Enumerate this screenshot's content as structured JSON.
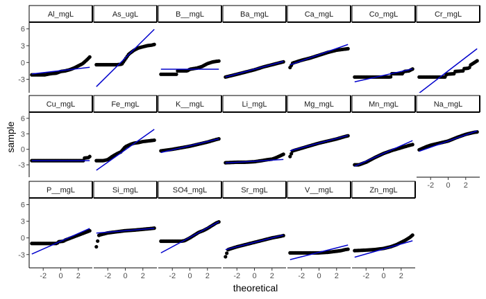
{
  "chart_data": {
    "type": "scatter",
    "title": "",
    "xlabel": "theoretical",
    "ylabel": "sample",
    "x_ticks": [
      -2,
      0,
      2
    ],
    "y_ticks": [
      -3,
      0,
      3,
      6
    ],
    "x_tick_labels": [
      "-2",
      "0",
      "2"
    ],
    "y_tick_labels": [
      "-3",
      "0",
      "3",
      "6"
    ],
    "xlim": [
      -3.6,
      3.6
    ],
    "ylim": [
      -5.4,
      7.2
    ],
    "grid": false,
    "colors": {
      "points": "#000000",
      "reference_line": "#0000cc",
      "strip_fill": "#ffffff",
      "strip_border": "#000000"
    },
    "panels": [
      {
        "name": "Al_mgL",
        "line": {
          "intercept": -1.45,
          "slope": 0.18
        },
        "curve": [
          [
            -3.3,
            -2.2
          ],
          [
            -2.5,
            -2.2
          ],
          [
            -1.8,
            -2.2
          ],
          [
            -1.2,
            -2.0
          ],
          [
            -0.5,
            -1.9
          ],
          [
            0.0,
            -1.6
          ],
          [
            0.5,
            -1.5
          ],
          [
            1.0,
            -1.3
          ],
          [
            1.5,
            -1.0
          ],
          [
            2.0,
            -0.6
          ],
          [
            2.5,
            -0.2
          ],
          [
            3.0,
            0.5
          ],
          [
            3.5,
            1.3
          ]
        ]
      },
      {
        "name": "As_ugL",
        "line": {
          "intercept": 0.8,
          "slope": 1.55
        },
        "curve": [
          [
            -3.3,
            -0.4
          ],
          [
            -2.0,
            -0.4
          ],
          [
            -1.0,
            -0.4
          ],
          [
            -0.4,
            -0.3
          ],
          [
            0.0,
            0.6
          ],
          [
            0.4,
            1.5
          ],
          [
            1.0,
            2.2
          ],
          [
            1.5,
            2.6
          ],
          [
            2.0,
            2.8
          ],
          [
            2.5,
            3.0
          ],
          [
            3.0,
            3.1
          ],
          [
            3.5,
            3.3
          ]
        ]
      },
      {
        "name": "B__mgL",
        "line": {
          "intercept": -1.2,
          "slope": 0.0
        },
        "curve": [
          [
            -3.3,
            -2.1
          ],
          [
            -2.0,
            -2.1
          ],
          [
            -1.5,
            -2.1
          ],
          [
            -1.4,
            -1.5
          ],
          [
            -0.3,
            -1.5
          ],
          [
            0.0,
            -1.2
          ],
          [
            0.8,
            -1.0
          ],
          [
            1.4,
            -0.7
          ],
          [
            2.0,
            -0.2
          ],
          [
            2.6,
            0.1
          ],
          [
            3.0,
            0.2
          ],
          [
            3.5,
            0.3
          ]
        ]
      },
      {
        "name": "Ba_mgL",
        "line": {
          "intercept": -1.2,
          "slope": 0.42
        },
        "curve": [
          [
            -3.3,
            -2.6
          ],
          [
            -2.0,
            -2.1
          ],
          [
            -1.0,
            -1.7
          ],
          [
            0.0,
            -1.3
          ],
          [
            1.0,
            -0.8
          ],
          [
            2.0,
            -0.4
          ],
          [
            3.0,
            0.0
          ],
          [
            3.5,
            0.2
          ]
        ]
      },
      {
        "name": "Ca_mgL",
        "line": {
          "intercept": 1.4,
          "slope": 0.55
        },
        "curve": [
          [
            -3.3,
            -0.9
          ],
          [
            -3.0,
            -0.1
          ],
          [
            -2.0,
            0.4
          ],
          [
            -1.0,
            0.8
          ],
          [
            0.0,
            1.3
          ],
          [
            1.0,
            1.8
          ],
          [
            2.0,
            2.2
          ],
          [
            3.0,
            2.4
          ],
          [
            3.5,
            2.5
          ]
        ]
      },
      {
        "name": "Co_mgL",
        "line": {
          "intercept": -2.3,
          "slope": 0.35
        },
        "curve": [
          [
            -3.3,
            -2.6
          ],
          [
            -2.0,
            -2.6
          ],
          [
            -1.0,
            -2.6
          ],
          [
            0.0,
            -2.6
          ],
          [
            0.8,
            -2.6
          ],
          [
            0.9,
            -2.0
          ],
          [
            1.5,
            -2.0
          ],
          [
            2.2,
            -2.0
          ],
          [
            2.3,
            -1.6
          ],
          [
            2.9,
            -1.5
          ],
          [
            3.5,
            -1.0
          ]
        ]
      },
      {
        "name": "Cr_mgL",
        "line": {
          "intercept": -1.5,
          "slope": 1.2
        },
        "curve": [
          [
            -3.3,
            -2.6
          ],
          [
            -2.0,
            -2.6
          ],
          [
            -1.0,
            -2.6
          ],
          [
            -0.3,
            -2.6
          ],
          [
            -0.2,
            -2.1
          ],
          [
            0.7,
            -2.0
          ],
          [
            0.8,
            -1.6
          ],
          [
            1.7,
            -1.5
          ],
          [
            1.8,
            -1.1
          ],
          [
            2.4,
            -1.0
          ],
          [
            2.5,
            -0.5
          ],
          [
            3.0,
            0.0
          ],
          [
            3.5,
            0.5
          ]
        ]
      },
      {
        "name": "Cu_mgL",
        "line": {
          "intercept": -2.2,
          "slope": 0.0
        },
        "curve": [
          [
            -3.3,
            -2.2
          ],
          [
            -2.0,
            -2.2
          ],
          [
            -1.0,
            -2.2
          ],
          [
            0.0,
            -2.2
          ],
          [
            1.0,
            -2.2
          ],
          [
            2.0,
            -2.2
          ],
          [
            2.6,
            -2.2
          ],
          [
            2.7,
            -1.7
          ],
          [
            3.2,
            -1.6
          ],
          [
            3.5,
            -1.0
          ]
        ]
      },
      {
        "name": "Fe_mgL",
        "line": {
          "intercept": -0.1,
          "slope": 1.2
        },
        "curve": [
          [
            -3.3,
            -2.2
          ],
          [
            -2.5,
            -2.2
          ],
          [
            -2.0,
            -2.0
          ],
          [
            -1.5,
            -1.4
          ],
          [
            -1.0,
            -0.9
          ],
          [
            -0.5,
            -0.5
          ],
          [
            0.0,
            0.5
          ],
          [
            0.5,
            0.9
          ],
          [
            1.0,
            1.2
          ],
          [
            1.5,
            1.3
          ],
          [
            2.0,
            1.5
          ],
          [
            2.5,
            1.6
          ],
          [
            3.0,
            1.7
          ],
          [
            3.5,
            1.8
          ]
        ]
      },
      {
        "name": "K__mgL",
        "line": {
          "intercept": 0.7,
          "slope": 0.4
        },
        "curve": [
          [
            -3.3,
            -0.3
          ],
          [
            -2.0,
            0.0
          ],
          [
            -1.0,
            0.3
          ],
          [
            0.0,
            0.6
          ],
          [
            1.0,
            1.0
          ],
          [
            2.0,
            1.4
          ],
          [
            3.0,
            1.9
          ],
          [
            3.5,
            2.1
          ]
        ]
      },
      {
        "name": "Li_mgL",
        "line": {
          "intercept": -2.3,
          "slope": 0.1
        },
        "curve": [
          [
            -3.3,
            -2.6
          ],
          [
            -2.0,
            -2.5
          ],
          [
            -1.0,
            -2.5
          ],
          [
            0.0,
            -2.4
          ],
          [
            0.8,
            -2.2
          ],
          [
            1.5,
            -2.0
          ],
          [
            2.0,
            -1.9
          ],
          [
            2.5,
            -1.6
          ],
          [
            3.0,
            -1.2
          ],
          [
            3.5,
            -0.8
          ]
        ]
      },
      {
        "name": "Mg_mgL",
        "line": {
          "intercept": 1.2,
          "slope": 0.45
        },
        "curve": [
          [
            -3.3,
            -1.4
          ],
          [
            -3.0,
            -0.3
          ],
          [
            -2.0,
            0.2
          ],
          [
            -1.0,
            0.7
          ],
          [
            0.0,
            1.2
          ],
          [
            1.0,
            1.6
          ],
          [
            2.0,
            2.0
          ],
          [
            3.0,
            2.5
          ],
          [
            3.5,
            2.7
          ]
        ]
      },
      {
        "name": "Mn_mgL",
        "line": {
          "intercept": -0.8,
          "slope": 0.75
        },
        "curve": [
          [
            -3.3,
            -3.0
          ],
          [
            -2.8,
            -3.0
          ],
          [
            -2.0,
            -2.5
          ],
          [
            -1.0,
            -1.6
          ],
          [
            0.0,
            -0.8
          ],
          [
            1.0,
            -0.2
          ],
          [
            2.0,
            0.3
          ],
          [
            3.0,
            0.8
          ],
          [
            3.5,
            1.0
          ]
        ]
      },
      {
        "name": "Na_mgL",
        "line": {
          "intercept": 1.6,
          "slope": 0.6
        },
        "curve": [
          [
            -3.3,
            -0.1
          ],
          [
            -2.5,
            0.5
          ],
          [
            -2.0,
            0.8
          ],
          [
            -1.0,
            1.2
          ],
          [
            0.0,
            1.6
          ],
          [
            1.0,
            2.3
          ],
          [
            2.0,
            2.9
          ],
          [
            3.0,
            3.3
          ],
          [
            3.5,
            3.4
          ]
        ]
      },
      {
        "name": "P__mgL",
        "line": {
          "intercept": -0.6,
          "slope": 0.7
        },
        "curve": [
          [
            -3.3,
            -1.0
          ],
          [
            -2.0,
            -1.0
          ],
          [
            -1.0,
            -1.0
          ],
          [
            -0.4,
            -1.0
          ],
          [
            -0.3,
            -0.7
          ],
          [
            0.3,
            -0.6
          ],
          [
            0.5,
            -0.4
          ],
          [
            1.0,
            -0.1
          ],
          [
            2.0,
            0.5
          ],
          [
            3.0,
            1.1
          ],
          [
            3.5,
            1.4
          ]
        ]
      },
      {
        "name": "Si_mgL",
        "line": {
          "intercept": 1.3,
          "slope": 0.13
        },
        "curve": [
          [
            -3.3,
            -1.6
          ],
          [
            -3.0,
            0.5
          ],
          [
            -2.0,
            0.9
          ],
          [
            -1.0,
            1.1
          ],
          [
            0.0,
            1.3
          ],
          [
            1.0,
            1.4
          ],
          [
            2.0,
            1.55
          ],
          [
            3.0,
            1.7
          ],
          [
            3.5,
            1.8
          ]
        ]
      },
      {
        "name": "SO4_mgL",
        "line": {
          "intercept": 0.1,
          "slope": 0.85
        },
        "curve": [
          [
            -3.3,
            -0.6
          ],
          [
            -2.0,
            -0.6
          ],
          [
            -1.0,
            -0.6
          ],
          [
            -0.6,
            -0.5
          ],
          [
            0.0,
            0.0
          ],
          [
            0.5,
            0.5
          ],
          [
            1.0,
            1.0
          ],
          [
            1.5,
            1.3
          ],
          [
            2.0,
            1.7
          ],
          [
            2.5,
            2.2
          ],
          [
            3.0,
            2.7
          ],
          [
            3.5,
            3.0
          ]
        ]
      },
      {
        "name": "Sr_mgL",
        "line": {
          "intercept": -0.8,
          "slope": 0.4
        },
        "curve": [
          [
            -3.3,
            -3.4
          ],
          [
            -3.0,
            -2.1
          ],
          [
            -2.0,
            -1.6
          ],
          [
            -1.0,
            -1.2
          ],
          [
            0.0,
            -0.8
          ],
          [
            1.0,
            -0.4
          ],
          [
            2.0,
            0.0
          ],
          [
            3.0,
            0.3
          ],
          [
            3.5,
            0.5
          ]
        ]
      },
      {
        "name": "V__mgL",
        "line": {
          "intercept": -2.6,
          "slope": 0.4
        },
        "curve": [
          [
            -3.3,
            -2.7
          ],
          [
            -2.0,
            -2.7
          ],
          [
            -1.0,
            -2.7
          ],
          [
            0.0,
            -2.7
          ],
          [
            1.0,
            -2.6
          ],
          [
            1.5,
            -2.5
          ],
          [
            2.0,
            -2.4
          ],
          [
            2.5,
            -2.3
          ],
          [
            3.0,
            -2.1
          ],
          [
            3.5,
            -2.0
          ]
        ]
      },
      {
        "name": "Zn_mgL",
        "line": {
          "intercept": -2.0,
          "slope": 0.45
        },
        "curve": [
          [
            -3.3,
            -2.3
          ],
          [
            -2.0,
            -2.2
          ],
          [
            -1.0,
            -2.1
          ],
          [
            0.0,
            -1.9
          ],
          [
            0.8,
            -1.6
          ],
          [
            1.5,
            -1.2
          ],
          [
            2.0,
            -0.8
          ],
          [
            2.5,
            -0.4
          ],
          [
            3.0,
            0.1
          ],
          [
            3.3,
            0.5
          ],
          [
            3.5,
            0.8
          ]
        ]
      }
    ]
  }
}
